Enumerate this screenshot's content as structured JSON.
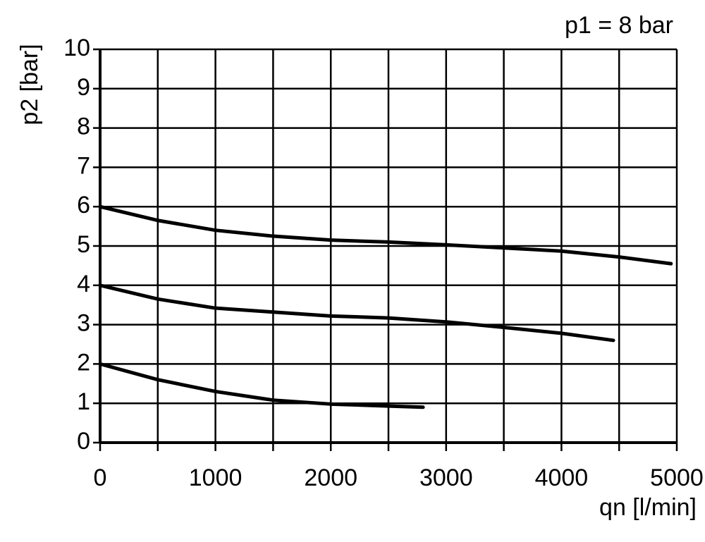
{
  "chart_data": {
    "type": "line",
    "title": "p1 = 8 bar",
    "y_label": "p2 [bar]",
    "x_label": "qn [l/min]",
    "xlim": [
      0,
      5000
    ],
    "ylim": [
      0,
      10
    ],
    "xticks": [
      0,
      1000,
      2000,
      3000,
      4000,
      5000
    ],
    "xgrid": [
      0,
      500,
      1000,
      1500,
      2000,
      2500,
      3000,
      3500,
      4000,
      4500,
      5000
    ],
    "yticks": [
      0,
      1,
      2,
      3,
      4,
      5,
      6,
      7,
      8,
      9,
      10
    ],
    "grid": true,
    "series": [
      {
        "color": "#000000",
        "x": [
          0,
          500,
          1000,
          1500,
          2000,
          2500,
          3000,
          3500,
          4000,
          4500,
          4950
        ],
        "values": [
          6,
          5.65,
          5.4,
          5.25,
          5.15,
          5.1,
          5.03,
          4.95,
          4.87,
          4.72,
          4.55
        ]
      },
      {
        "color": "#000000",
        "x": [
          0,
          500,
          1000,
          1500,
          2000,
          2500,
          3000,
          3500,
          4000,
          4450
        ],
        "values": [
          4,
          3.65,
          3.42,
          3.32,
          3.22,
          3.17,
          3.07,
          2.93,
          2.78,
          2.6
        ]
      },
      {
        "color": "#000000",
        "x": [
          0,
          500,
          1000,
          1500,
          2000,
          2500,
          2800
        ],
        "values": [
          2,
          1.6,
          1.3,
          1.08,
          0.98,
          0.93,
          0.9
        ]
      }
    ]
  }
}
